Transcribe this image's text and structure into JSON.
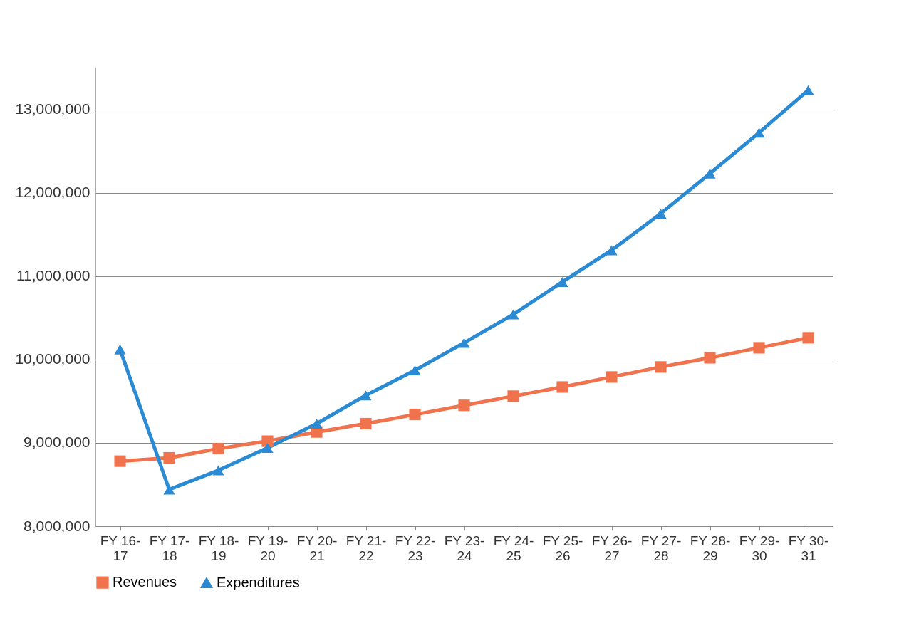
{
  "chart_data": {
    "type": "line",
    "categories": [
      "FY 16-17",
      "FY 17-18",
      "FY 18-19",
      "FY 19-20",
      "FY 20-21",
      "FY 21-22",
      "FY 22-23",
      "FY 23-24",
      "FY 24-25",
      "FY 25-26",
      "FY 26-27",
      "FY 27-28",
      "FY 28-29",
      "FY 29-30",
      "FY 30-31"
    ],
    "series": [
      {
        "name": "Revenues",
        "color": "#f0734e",
        "marker": "square",
        "line_style": "solid",
        "values": [
          8780000,
          8820000,
          8930000,
          9020000,
          9130000,
          9230000,
          9340000,
          9450000,
          9560000,
          9670000,
          9790000,
          9910000,
          10020000,
          10140000,
          10260000
        ]
      },
      {
        "name": "Expenditures",
        "color": "#2a8bd4",
        "marker": "triangle",
        "line_style": "solid",
        "values": [
          10120000,
          8440000,
          8670000,
          8940000,
          9230000,
          9570000,
          9870000,
          10200000,
          10540000,
          10930000,
          11310000,
          11750000,
          12230000,
          12720000,
          13230000
        ]
      }
    ],
    "ylim": [
      8000000,
      13500000
    ],
    "yticks": [
      {
        "value": 8000000,
        "label": "8,000,000"
      },
      {
        "value": 9000000,
        "label": "9,000,000"
      },
      {
        "value": 10000000,
        "label": "10,000,000"
      },
      {
        "value": 11000000,
        "label": "11,000,000"
      },
      {
        "value": 12000000,
        "label": "12,000,000"
      },
      {
        "value": 13000000,
        "label": "13,000,000"
      }
    ],
    "grid": "y",
    "legend": "bottom"
  }
}
